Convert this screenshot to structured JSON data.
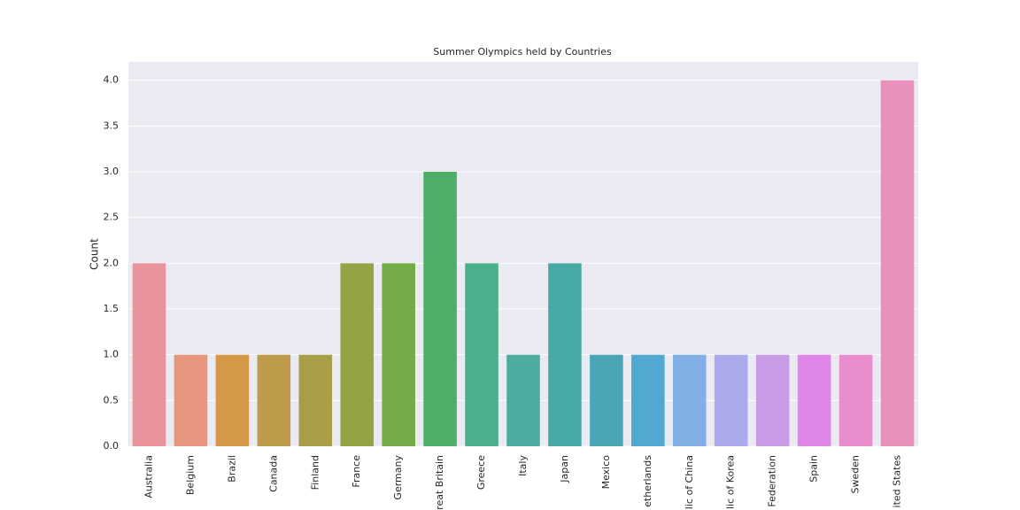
{
  "chart_data": {
    "type": "bar",
    "title": "Summer Olympics held by Countries",
    "y_label": "Count",
    "categories": [
      "Australia",
      "Belgium",
      "Brazil",
      "Canada",
      "Finland",
      "France",
      "Germany",
      "reat Britain",
      "Greece",
      "Italy",
      "Japan",
      "Mexico",
      "etherlands",
      "lic of China",
      "lic of Korea",
      "Federation",
      "Spain",
      "Sweden",
      "ited States"
    ],
    "values": [
      2,
      1,
      1,
      1,
      1,
      2,
      2,
      3,
      2,
      1,
      2,
      1,
      1,
      1,
      1,
      1,
      1,
      1,
      4
    ],
    "colors": [
      "#e9949d",
      "#e6967c",
      "#d59848",
      "#bd9b4a",
      "#a89e47",
      "#94a445",
      "#73ab46",
      "#4caf65",
      "#4baf8c",
      "#4bac9f",
      "#48a8a3",
      "#4aa5b6",
      "#51a8d0",
      "#82afe6",
      "#abaaeb",
      "#c99ce7",
      "#e086e8",
      "#e88ccc",
      "#e991bc"
    ],
    "ylim": [
      0,
      4.2
    ],
    "yticks": [
      {
        "value": 0,
        "label": "0.0"
      },
      {
        "value": 0.5,
        "label": "0.5"
      },
      {
        "value": 1,
        "label": "1.0"
      },
      {
        "value": 1.5,
        "label": "1.5"
      },
      {
        "value": 2,
        "label": "2.0"
      },
      {
        "value": 2.5,
        "label": "2.5"
      },
      {
        "value": 3,
        "label": "3.0"
      },
      {
        "value": 3.5,
        "label": "3.5"
      },
      {
        "value": 4,
        "label": "4.0"
      }
    ],
    "grid": true
  }
}
